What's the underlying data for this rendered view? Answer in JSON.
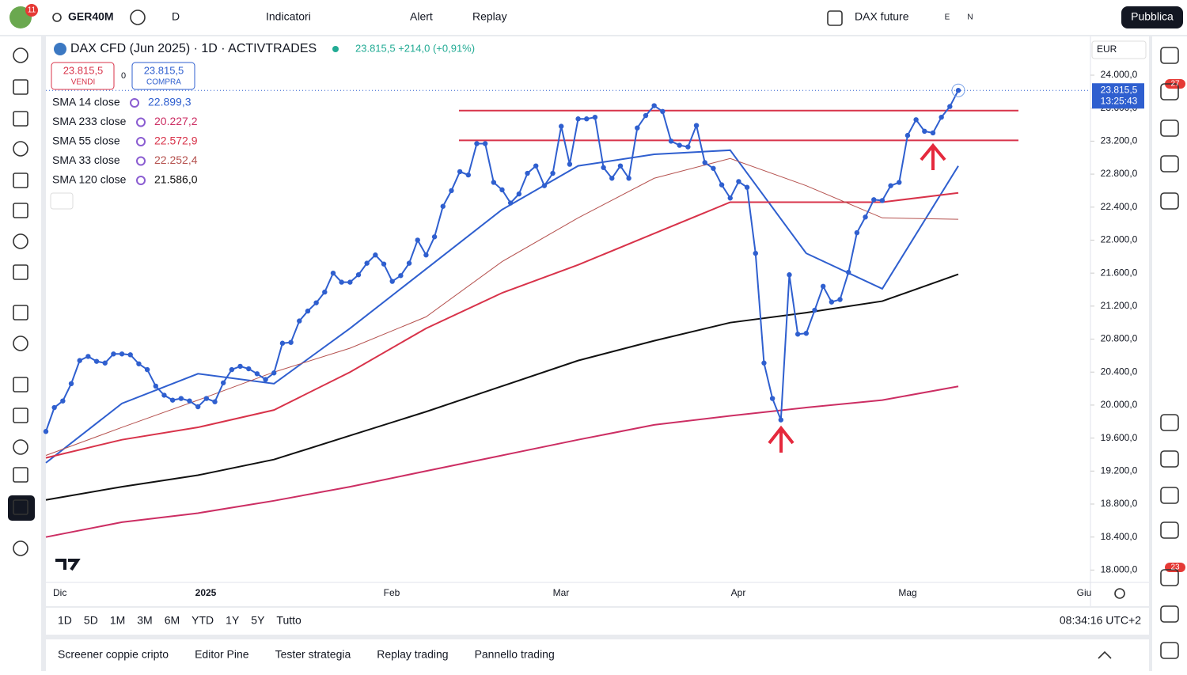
{
  "toolbar": {
    "avatar_badge": "11",
    "symbol": "GER40M",
    "interval": "D",
    "indicators": "Indicatori",
    "alert": "Alert",
    "replay": "Replay",
    "compare": "DAX future",
    "badge_e": "E",
    "badge_n": "N",
    "publish": "Pubblica"
  },
  "header": {
    "title": "DAX CFD (Jun 2025) · 1D · ACTIVTRADES",
    "quote": "23.815,5 +214,0 (+0,91%)",
    "sell_price": "23.815,5",
    "sell": "VENDI",
    "spread": "0",
    "buy_price": "23.815,5",
    "buy": "COMPRA"
  },
  "chart": {
    "type": "line",
    "currency": "EUR",
    "ylim": [
      17850,
      24470
    ],
    "yticks": [
      {
        "value": 24000,
        "label": "24.000,0"
      },
      {
        "value": 23600,
        "label": "23.600,0"
      },
      {
        "value": 23200,
        "label": "23.200,0"
      },
      {
        "value": 22800,
        "label": "22.800,0"
      },
      {
        "value": 22400,
        "label": "22.400,0"
      },
      {
        "value": 22000,
        "label": "22.000,0"
      },
      {
        "value": 21600,
        "label": "21.600,0"
      },
      {
        "value": 21200,
        "label": "21.200,0"
      },
      {
        "value": 20800,
        "label": "20.800,0"
      },
      {
        "value": 20400,
        "label": "20.400,0"
      },
      {
        "value": 20000,
        "label": "20.000,0"
      },
      {
        "value": 19600,
        "label": "19.600,0"
      },
      {
        "value": 19200,
        "label": "19.200,0"
      },
      {
        "value": 18800,
        "label": "18.800,0"
      },
      {
        "value": 18400,
        "label": "18.400,0"
      },
      {
        "value": 18000,
        "label": "18.000,0"
      }
    ],
    "x_labels": [
      "Dic",
      "2025",
      "Feb",
      "Mar",
      "Apr",
      "Mag",
      "Giu"
    ],
    "series": [
      {
        "name": "DAX CFD",
        "color": "#2f5fcf",
        "values": [
          19680,
          19970,
          20050,
          20260,
          20540,
          20590,
          20530,
          20510,
          20620,
          20620,
          20610,
          20500,
          20430,
          20230,
          20120,
          20060,
          20080,
          20050,
          19980,
          20080,
          20040,
          20270,
          20430,
          20470,
          20440,
          20380,
          20310,
          20390,
          20750,
          20760,
          21020,
          21140,
          21240,
          21370,
          21600,
          21490,
          21490,
          21580,
          21720,
          21820,
          21710,
          21500,
          21570,
          21720,
          22000,
          21820,
          22040,
          22410,
          22600,
          22830,
          22790,
          23170,
          23170,
          22700,
          22610,
          22450,
          22560,
          22810,
          22900,
          22660,
          22810,
          23380,
          22920,
          23470,
          23470,
          23490,
          22880,
          22750,
          22900,
          22750,
          23360,
          23510,
          23630,
          23560,
          23200,
          23150,
          23130,
          23390,
          22940,
          22870,
          22670,
          22510,
          22710,
          22640,
          21840,
          20510,
          20080,
          19820,
          21580,
          20860,
          20870,
          21150,
          21440,
          21250,
          21280,
          21610,
          22090,
          22280,
          22490,
          22480,
          22660,
          22700,
          23270,
          23460,
          23320,
          23300,
          23490,
          23620,
          23815.5
        ]
      }
    ],
    "indicators": [
      {
        "name": "SMA 14 close",
        "value_label": "22.899,3",
        "color": "#2f5fcf",
        "values": [
          19300,
          20020,
          20380,
          20260,
          20930,
          21650,
          22370,
          22900,
          23040,
          23090,
          21840,
          21410,
          22899.3
        ]
      },
      {
        "name": "SMA 233 close",
        "value_label": "20.227,2",
        "color": "#cc2e63",
        "values": [
          18400,
          18580,
          18690,
          18840,
          19010,
          19200,
          19390,
          19580,
          19760,
          19870,
          19970,
          20060,
          20227.2
        ]
      },
      {
        "name": "SMA 55 close",
        "value_label": "22.572,9",
        "color": "#d8334a",
        "values": [
          19360,
          19580,
          19730,
          19940,
          20400,
          20930,
          21360,
          21700,
          22080,
          22460,
          22460,
          22460,
          22572.9
        ]
      },
      {
        "name": "SMA 33 close",
        "value_label": "22.252,4",
        "color": "#b5524f",
        "values": [
          19390,
          19730,
          20060,
          20400,
          20690,
          21070,
          21740,
          22270,
          22750,
          22990,
          22660,
          22270,
          22252.4
        ]
      },
      {
        "name": "SMA 120 close",
        "value_label": "21.586,0",
        "color": "#111111",
        "values": [
          18850,
          19010,
          19150,
          19340,
          19630,
          19920,
          20230,
          20540,
          20780,
          21000,
          21120,
          21260,
          21586
        ]
      }
    ],
    "hlines": {
      "color": "#d8334a",
      "values": [
        23570,
        23210
      ]
    },
    "last_label": "23.815,5",
    "countdown": "13:25:43"
  },
  "ranges": [
    "1D",
    "5D",
    "1M",
    "3M",
    "6M",
    "YTD",
    "1Y",
    "5Y",
    "Tutto"
  ],
  "clock": "08:34:16 UTC+2",
  "tabs": [
    "Screener coppie cripto",
    "Editor Pine",
    "Tester strategia",
    "Replay trading",
    "Pannello trading"
  ],
  "sidebar": {
    "alerts_badge": "27",
    "feed_badge": "23"
  }
}
